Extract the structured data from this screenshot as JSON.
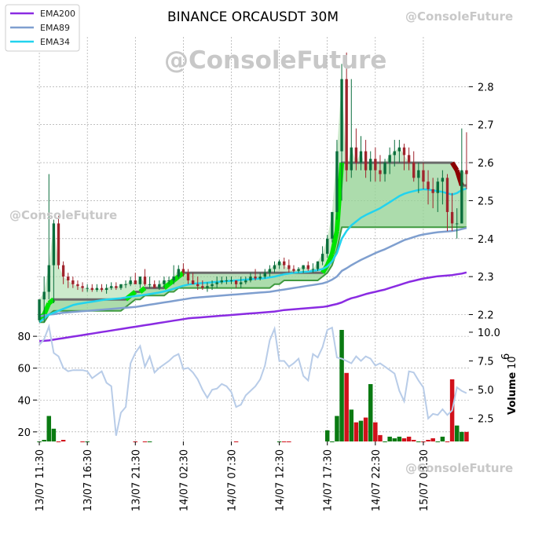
{
  "chart_data": {
    "type": "candlestick",
    "title": "BINANCE ORCAUSDT 30M",
    "price_ylim": [
      2.17,
      2.9
    ],
    "price_ticks": [
      2.2,
      2.3,
      2.4,
      2.5,
      2.6,
      2.7,
      2.8
    ],
    "left_ylim": [
      14,
      84
    ],
    "left_ticks": [
      20,
      40,
      60,
      80
    ],
    "volume_ylim": [
      0.5,
      10.2
    ],
    "volume_ticks": [
      2.5,
      5.0,
      7.5,
      10.0
    ],
    "volume_label": "Volume",
    "volume_exponent": "10",
    "volume_exponent_power": "6",
    "x_tick_labels": [
      "13/07 11:30",
      "13/07 16:30",
      "13/07 21:30",
      "14/07 02:30",
      "14/07 07:30",
      "14/07 12:30",
      "14/07 17:30",
      "14/07 22:30",
      "15/07 03:30"
    ],
    "x_tick_index": [
      0,
      10,
      20,
      30,
      40,
      50,
      60,
      70,
      80
    ],
    "legend": [
      {
        "name": "EMA200",
        "color": "#8a2be2"
      },
      {
        "name": "EMA89",
        "color": "#7f9fcf"
      },
      {
        "name": "EMA34",
        "color": "#22d3ee"
      }
    ],
    "watermarks": [
      "@ConsoleFuture",
      "@ConsoleFuture",
      "@ConsoleFuture",
      "@ConsoleFuture"
    ],
    "candles": {
      "open": [
        2.185,
        2.24,
        2.26,
        2.33,
        2.44,
        2.33,
        2.3,
        2.29,
        2.28,
        2.275,
        2.27,
        2.27,
        2.265,
        2.27,
        2.265,
        2.27,
        2.275,
        2.27,
        2.28,
        2.28,
        2.29,
        2.28,
        2.3,
        2.28,
        2.28,
        2.27,
        2.28,
        2.29,
        2.29,
        2.3,
        2.32,
        2.31,
        2.29,
        2.28,
        2.275,
        2.27,
        2.275,
        2.28,
        2.285,
        2.29,
        2.29,
        2.29,
        2.28,
        2.285,
        2.29,
        2.3,
        2.295,
        2.3,
        2.31,
        2.32,
        2.33,
        2.34,
        2.33,
        2.32,
        2.315,
        2.32,
        2.33,
        2.32,
        2.32,
        2.34,
        2.36,
        2.4,
        2.47,
        2.63,
        2.82,
        2.58,
        2.64,
        2.6,
        2.63,
        2.58,
        2.61,
        2.58,
        2.57,
        2.6,
        2.62,
        2.63,
        2.64,
        2.62,
        2.6,
        2.56,
        2.58,
        2.55,
        2.53,
        2.52,
        2.55,
        2.56,
        2.47,
        2.44,
        2.44,
        2.58
      ],
      "high": [
        2.22,
        2.3,
        2.57,
        2.45,
        2.46,
        2.34,
        2.31,
        2.3,
        2.29,
        2.285,
        2.28,
        2.28,
        2.28,
        2.28,
        2.28,
        2.285,
        2.285,
        2.28,
        2.29,
        2.3,
        2.31,
        2.3,
        2.32,
        2.3,
        2.29,
        2.29,
        2.3,
        2.3,
        2.33,
        2.33,
        2.335,
        2.32,
        2.31,
        2.3,
        2.29,
        2.285,
        2.29,
        2.3,
        2.3,
        2.3,
        2.3,
        2.29,
        2.3,
        2.3,
        2.31,
        2.32,
        2.31,
        2.32,
        2.33,
        2.34,
        2.345,
        2.35,
        2.345,
        2.33,
        2.325,
        2.33,
        2.34,
        2.335,
        2.34,
        2.38,
        2.41,
        2.47,
        2.66,
        2.86,
        2.89,
        2.82,
        2.69,
        2.67,
        2.66,
        2.63,
        2.64,
        2.62,
        2.61,
        2.64,
        2.66,
        2.66,
        2.65,
        2.64,
        2.63,
        2.6,
        2.6,
        2.58,
        2.56,
        2.56,
        2.58,
        2.57,
        2.52,
        2.48,
        2.69,
        2.68
      ],
      "low": [
        2.18,
        2.18,
        2.24,
        2.23,
        2.32,
        2.28,
        2.27,
        2.27,
        2.265,
        2.26,
        2.26,
        2.26,
        2.26,
        2.26,
        2.255,
        2.265,
        2.265,
        2.265,
        2.27,
        2.275,
        2.28,
        2.27,
        2.275,
        2.27,
        2.27,
        2.265,
        2.27,
        2.28,
        2.28,
        2.295,
        2.3,
        2.28,
        2.28,
        2.265,
        2.265,
        2.26,
        2.265,
        2.27,
        2.28,
        2.28,
        2.28,
        2.27,
        2.27,
        2.28,
        2.285,
        2.29,
        2.29,
        2.295,
        2.3,
        2.31,
        2.32,
        2.32,
        2.31,
        2.31,
        2.31,
        2.31,
        2.315,
        2.31,
        2.315,
        2.33,
        2.35,
        2.39,
        2.45,
        2.5,
        2.55,
        2.56,
        2.58,
        2.58,
        2.56,
        2.55,
        2.55,
        2.55,
        2.55,
        2.57,
        2.59,
        2.6,
        2.58,
        2.58,
        2.55,
        2.52,
        2.53,
        2.49,
        2.48,
        2.47,
        2.49,
        2.42,
        2.42,
        2.4,
        2.44,
        2.53
      ],
      "close": [
        2.24,
        2.26,
        2.33,
        2.44,
        2.33,
        2.3,
        2.29,
        2.28,
        2.275,
        2.27,
        2.27,
        2.265,
        2.27,
        2.265,
        2.27,
        2.275,
        2.27,
        2.28,
        2.28,
        2.29,
        2.28,
        2.3,
        2.28,
        2.28,
        2.27,
        2.28,
        2.29,
        2.29,
        2.3,
        2.32,
        2.31,
        2.29,
        2.28,
        2.275,
        2.27,
        2.275,
        2.28,
        2.285,
        2.29,
        2.29,
        2.29,
        2.28,
        2.285,
        2.29,
        2.3,
        2.295,
        2.3,
        2.31,
        2.32,
        2.33,
        2.34,
        2.33,
        2.32,
        2.315,
        2.32,
        2.33,
        2.32,
        2.32,
        2.34,
        2.36,
        2.4,
        2.47,
        2.63,
        2.82,
        2.58,
        2.64,
        2.6,
        2.63,
        2.58,
        2.61,
        2.58,
        2.57,
        2.6,
        2.62,
        2.63,
        2.64,
        2.62,
        2.6,
        2.56,
        2.58,
        2.55,
        2.53,
        2.52,
        2.55,
        2.56,
        2.47,
        2.44,
        2.44,
        2.58,
        2.57
      ]
    },
    "volume_bars": [
      10,
      15,
      30,
      22,
      14,
      15,
      0,
      0,
      0,
      3,
      2,
      0,
      0,
      0,
      0,
      0,
      0,
      0,
      0,
      0,
      2,
      0,
      1,
      1,
      0,
      0,
      0,
      0,
      0,
      0,
      0,
      0,
      0,
      0,
      0,
      0,
      0,
      0,
      0,
      0,
      0,
      1,
      0,
      0,
      0,
      0,
      0,
      0,
      0,
      0,
      1,
      1,
      1,
      0,
      0,
      0,
      0,
      0,
      0,
      0,
      21,
      13,
      30,
      84,
      57,
      34,
      26,
      27,
      29,
      50,
      26,
      18,
      14,
      17,
      16,
      17,
      16,
      17,
      15,
      14,
      14,
      15,
      16,
      14,
      17,
      14,
      53,
      24,
      20,
      20
    ],
    "volume_line": [
      8.9,
      9.4,
      10.5,
      8.2,
      7.9,
      6.9,
      6.6,
      6.7,
      6.7,
      6.7,
      6.6,
      6.0,
      6.3,
      6.6,
      5.6,
      5.3,
      1.0,
      3.0,
      3.5,
      7.3,
      8.2,
      8.8,
      7.0,
      7.9,
      6.5,
      6.9,
      7.2,
      7.5,
      7.9,
      8.1,
      6.8,
      6.9,
      6.5,
      5.9,
      5.0,
      4.3,
      5.0,
      5.1,
      5.5,
      5.3,
      4.8,
      3.5,
      3.7,
      4.5,
      4.9,
      5.3,
      5.9,
      7.1,
      9.3,
      10.3,
      7.5,
      7.5,
      7.0,
      7.3,
      7.7,
      6.2,
      5.8,
      8.1,
      7.8,
      8.7,
      10.2,
      10.4,
      7.8,
      7.7,
      7.5,
      7.3,
      7.9,
      7.5,
      7.9,
      7.7,
      7.1,
      7.3,
      7.0,
      6.7,
      6.4,
      4.9,
      4.0,
      6.6,
      6.5,
      5.8,
      5.2,
      2.5,
      2.9,
      2.8,
      3.3,
      2.8,
      3.2,
      5.2,
      4.9,
      4.7
    ],
    "ema34": [
      2.18,
      2.19,
      2.2,
      2.205,
      2.21,
      2.215,
      2.22,
      2.225,
      2.228,
      2.23,
      2.232,
      2.234,
      2.236,
      2.238,
      2.24,
      2.241,
      2.242,
      2.243,
      2.245,
      2.247,
      2.249,
      2.25,
      2.252,
      2.254,
      2.256,
      2.258,
      2.261,
      2.264,
      2.268,
      2.272,
      2.276,
      2.279,
      2.281,
      2.282,
      2.283,
      2.284,
      2.285,
      2.286,
      2.287,
      2.288,
      2.289,
      2.29,
      2.291,
      2.292,
      2.293,
      2.294,
      2.295,
      2.296,
      2.298,
      2.3,
      2.303,
      2.306,
      2.308,
      2.31,
      2.311,
      2.312,
      2.313,
      2.315,
      2.317,
      2.32,
      2.327,
      2.34,
      2.362,
      2.4,
      2.42,
      2.435,
      2.445,
      2.455,
      2.462,
      2.468,
      2.474,
      2.48,
      2.488,
      2.496,
      2.504,
      2.512,
      2.518,
      2.522,
      2.525,
      2.528,
      2.53,
      2.529,
      2.527,
      2.525,
      2.523,
      2.519,
      2.516,
      2.52,
      2.528,
      2.532
    ],
    "ema89": [
      2.195,
      2.198,
      2.2,
      2.201,
      2.203,
      2.205,
      2.206,
      2.207,
      2.208,
      2.209,
      2.21,
      2.211,
      2.212,
      2.213,
      2.214,
      2.215,
      2.216,
      2.217,
      2.218,
      2.219,
      2.22,
      2.222,
      2.224,
      2.226,
      2.228,
      2.23,
      2.232,
      2.234,
      2.236,
      2.238,
      2.24,
      2.242,
      2.244,
      2.245,
      2.246,
      2.247,
      2.248,
      2.249,
      2.25,
      2.251,
      2.252,
      2.253,
      2.254,
      2.255,
      2.256,
      2.257,
      2.258,
      2.259,
      2.26,
      2.262,
      2.264,
      2.266,
      2.268,
      2.27,
      2.272,
      2.274,
      2.276,
      2.278,
      2.28,
      2.282,
      2.286,
      2.292,
      2.3,
      2.315,
      2.322,
      2.33,
      2.337,
      2.344,
      2.35,
      2.356,
      2.362,
      2.367,
      2.372,
      2.378,
      2.384,
      2.39,
      2.396,
      2.4,
      2.404,
      2.408,
      2.411,
      2.413,
      2.415,
      2.417,
      2.418,
      2.419,
      2.42,
      2.422,
      2.425,
      2.428
    ],
    "ema200": [
      2.13,
      2.131,
      2.132,
      2.134,
      2.136,
      2.138,
      2.14,
      2.142,
      2.144,
      2.146,
      2.148,
      2.15,
      2.152,
      2.154,
      2.156,
      2.158,
      2.16,
      2.162,
      2.164,
      2.166,
      2.168,
      2.17,
      2.172,
      2.174,
      2.176,
      2.178,
      2.18,
      2.182,
      2.184,
      2.186,
      2.188,
      2.19,
      2.191,
      2.192,
      2.193,
      2.194,
      2.195,
      2.196,
      2.197,
      2.198,
      2.199,
      2.2,
      2.201,
      2.202,
      2.203,
      2.204,
      2.205,
      2.206,
      2.207,
      2.208,
      2.21,
      2.212,
      2.213,
      2.214,
      2.215,
      2.216,
      2.217,
      2.218,
      2.219,
      2.22,
      2.222,
      2.225,
      2.228,
      2.232,
      2.238,
      2.243,
      2.246,
      2.25,
      2.254,
      2.257,
      2.26,
      2.263,
      2.266,
      2.27,
      2.274,
      2.278,
      2.282,
      2.286,
      2.289,
      2.292,
      2.295,
      2.297,
      2.299,
      2.301,
      2.302,
      2.303,
      2.304,
      2.306,
      2.308,
      2.311
    ],
    "band_upper": [
      2.19,
      2.2,
      2.23,
      2.24,
      2.24,
      2.24,
      2.24,
      2.24,
      2.24,
      2.24,
      2.24,
      2.24,
      2.24,
      2.24,
      2.24,
      2.24,
      2.24,
      2.24,
      2.24,
      2.25,
      2.26,
      2.26,
      2.27,
      2.27,
      2.27,
      2.27,
      2.27,
      2.28,
      2.29,
      2.3,
      2.31,
      2.31,
      2.31,
      2.31,
      2.31,
      2.31,
      2.31,
      2.31,
      2.31,
      2.31,
      2.31,
      2.31,
      2.31,
      2.31,
      2.31,
      2.31,
      2.31,
      2.31,
      2.31,
      2.31,
      2.31,
      2.31,
      2.31,
      2.31,
      2.31,
      2.31,
      2.31,
      2.31,
      2.31,
      2.31,
      2.33,
      2.36,
      2.42,
      2.6,
      2.6,
      2.6,
      2.6,
      2.6,
      2.6,
      2.6,
      2.6,
      2.6,
      2.6,
      2.6,
      2.6,
      2.6,
      2.6,
      2.6,
      2.6,
      2.6,
      2.6,
      2.6,
      2.6,
      2.6,
      2.6,
      2.6,
      2.6,
      2.58,
      2.54,
      2.54
    ],
    "band_lower": [
      2.18,
      2.18,
      2.2,
      2.21,
      2.21,
      2.21,
      2.21,
      2.21,
      2.21,
      2.21,
      2.21,
      2.21,
      2.21,
      2.21,
      2.21,
      2.21,
      2.21,
      2.21,
      2.22,
      2.23,
      2.24,
      2.24,
      2.25,
      2.25,
      2.25,
      2.25,
      2.25,
      2.26,
      2.26,
      2.27,
      2.27,
      2.27,
      2.27,
      2.27,
      2.27,
      2.27,
      2.27,
      2.27,
      2.27,
      2.27,
      2.27,
      2.27,
      2.27,
      2.27,
      2.27,
      2.27,
      2.27,
      2.27,
      2.27,
      2.28,
      2.28,
      2.29,
      2.29,
      2.29,
      2.29,
      2.29,
      2.29,
      2.29,
      2.29,
      2.3,
      2.31,
      2.33,
      2.37,
      2.43,
      2.43,
      2.43,
      2.43,
      2.43,
      2.43,
      2.43,
      2.43,
      2.43,
      2.43,
      2.43,
      2.43,
      2.43,
      2.43,
      2.43,
      2.43,
      2.43,
      2.43,
      2.43,
      2.43,
      2.43,
      2.43,
      2.43,
      2.43,
      2.43,
      2.43,
      2.43
    ]
  }
}
